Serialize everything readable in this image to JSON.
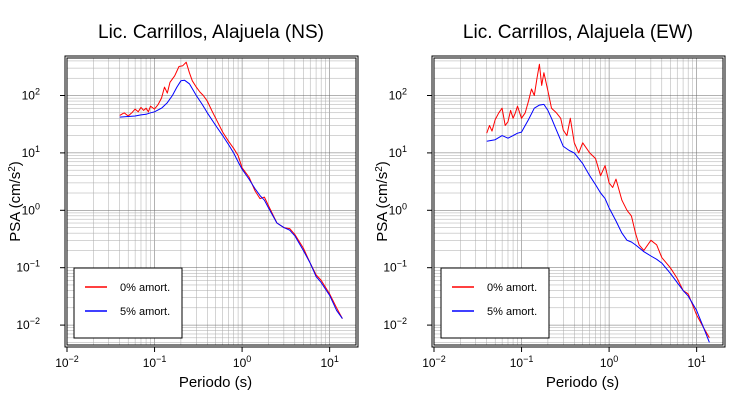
{
  "chart_data": [
    {
      "type": "line",
      "title": "Lic. Carrillos, Alajuela (NS)",
      "xlabel": "Periodo (s)",
      "ylabel_main": "PSA (cm/s",
      "ylabel_sup": "2",
      "ylabel_close": ")",
      "xscale": "log",
      "yscale": "log",
      "xlim": [
        0.01,
        20
      ],
      "ylim": [
        0.0045,
        450
      ],
      "grid": true,
      "legend_position": "bottom-left",
      "x_ticks": [
        {
          "base": "10",
          "exp": "−2",
          "value": 0.01
        },
        {
          "base": "10",
          "exp": "−1",
          "value": 0.1
        },
        {
          "base": "10",
          "exp": "0",
          "value": 1
        },
        {
          "base": "10",
          "exp": "1",
          "value": 10
        }
      ],
      "y_ticks": [
        {
          "base": "10",
          "exp": "−2",
          "value": 0.01
        },
        {
          "base": "10",
          "exp": "−1",
          "value": 0.1
        },
        {
          "base": "10",
          "exp": "0",
          "value": 1
        },
        {
          "base": "10",
          "exp": "1",
          "value": 10
        },
        {
          "base": "10",
          "exp": "2",
          "value": 100
        }
      ],
      "series": [
        {
          "name": "0% amort.",
          "color": "#ff0000",
          "x": [
            0.04,
            0.045,
            0.05,
            0.055,
            0.06,
            0.065,
            0.07,
            0.075,
            0.08,
            0.085,
            0.09,
            0.1,
            0.11,
            0.12,
            0.13,
            0.14,
            0.15,
            0.17,
            0.19,
            0.21,
            0.23,
            0.25,
            0.27,
            0.3,
            0.33,
            0.36,
            0.4,
            0.45,
            0.5,
            0.6,
            0.7,
            0.8,
            0.9,
            1.0,
            1.2,
            1.4,
            1.6,
            1.8,
            2.0,
            2.5,
            3.0,
            3.5,
            4.0,
            5.0,
            6.0,
            7.0,
            8.0,
            10.0,
            12.0,
            14.0
          ],
          "y": [
            45,
            50,
            44,
            50,
            58,
            52,
            62,
            55,
            60,
            52,
            65,
            58,
            70,
            90,
            140,
            110,
            170,
            220,
            320,
            330,
            380,
            250,
            180,
            140,
            115,
            100,
            80,
            55,
            40,
            23,
            16,
            12,
            9,
            5.5,
            3.8,
            2.2,
            1.6,
            1.7,
            1.2,
            0.6,
            0.5,
            0.48,
            0.38,
            0.22,
            0.12,
            0.075,
            0.06,
            0.035,
            0.02,
            0.013
          ]
        },
        {
          "name": "5% amort.",
          "color": "#0000ff",
          "x": [
            0.04,
            0.05,
            0.06,
            0.07,
            0.08,
            0.09,
            0.1,
            0.12,
            0.14,
            0.16,
            0.18,
            0.2,
            0.22,
            0.25,
            0.3,
            0.35,
            0.4,
            0.5,
            0.6,
            0.7,
            0.8,
            0.9,
            1.0,
            1.2,
            1.4,
            1.6,
            1.8,
            2.0,
            2.5,
            3.0,
            3.5,
            4.0,
            5.0,
            6.0,
            7.0,
            8.0,
            10.0,
            12.0,
            14.0
          ],
          "y": [
            42,
            43,
            44,
            46,
            47,
            50,
            52,
            60,
            75,
            100,
            140,
            180,
            185,
            160,
            100,
            70,
            50,
            30,
            20,
            14,
            10,
            7,
            5.2,
            3.5,
            2.4,
            1.8,
            1.5,
            1.1,
            0.6,
            0.5,
            0.45,
            0.36,
            0.2,
            0.12,
            0.07,
            0.055,
            0.033,
            0.018,
            0.013
          ]
        }
      ]
    },
    {
      "type": "line",
      "title": "Lic. Carrillos, Alajuela (EW)",
      "xlabel": "Periodo (s)",
      "ylabel_main": "PSA (cm/s",
      "ylabel_sup": "2",
      "ylabel_close": ")",
      "xscale": "log",
      "yscale": "log",
      "xlim": [
        0.01,
        20
      ],
      "ylim": [
        0.0045,
        450
      ],
      "grid": true,
      "legend_position": "bottom-left",
      "x_ticks": [
        {
          "base": "10",
          "exp": "−2",
          "value": 0.01
        },
        {
          "base": "10",
          "exp": "−1",
          "value": 0.1
        },
        {
          "base": "10",
          "exp": "0",
          "value": 1
        },
        {
          "base": "10",
          "exp": "1",
          "value": 10
        }
      ],
      "y_ticks": [
        {
          "base": "10",
          "exp": "−2",
          "value": 0.01
        },
        {
          "base": "10",
          "exp": "−1",
          "value": 0.1
        },
        {
          "base": "10",
          "exp": "0",
          "value": 1
        },
        {
          "base": "10",
          "exp": "1",
          "value": 10
        },
        {
          "base": "10",
          "exp": "2",
          "value": 100
        }
      ],
      "series": [
        {
          "name": "0% amort.",
          "color": "#ff0000",
          "x": [
            0.04,
            0.043,
            0.046,
            0.05,
            0.055,
            0.06,
            0.065,
            0.07,
            0.075,
            0.08,
            0.085,
            0.09,
            0.1,
            0.11,
            0.12,
            0.13,
            0.14,
            0.15,
            0.16,
            0.17,
            0.18,
            0.2,
            0.22,
            0.25,
            0.28,
            0.3,
            0.33,
            0.36,
            0.4,
            0.45,
            0.5,
            0.6,
            0.7,
            0.8,
            0.9,
            1.0,
            1.1,
            1.2,
            1.4,
            1.6,
            1.8,
            2.0,
            2.2,
            2.5,
            3.0,
            3.5,
            4.0,
            5.0,
            6.0,
            7.0,
            8.0,
            10.0,
            12.0,
            14.0
          ],
          "y": [
            22,
            30,
            24,
            38,
            50,
            60,
            30,
            35,
            55,
            40,
            50,
            65,
            40,
            50,
            80,
            130,
            100,
            200,
            350,
            150,
            250,
            120,
            60,
            50,
            40,
            25,
            20,
            40,
            15,
            10,
            15,
            10,
            8,
            4,
            6,
            3,
            2.5,
            3.5,
            1.5,
            1.0,
            0.8,
            0.4,
            0.25,
            0.2,
            0.3,
            0.25,
            0.15,
            0.1,
            0.065,
            0.04,
            0.035,
            0.015,
            0.009,
            0.006
          ]
        },
        {
          "name": "5% amort.",
          "color": "#0000ff",
          "x": [
            0.04,
            0.05,
            0.06,
            0.07,
            0.08,
            0.09,
            0.1,
            0.12,
            0.14,
            0.16,
            0.18,
            0.2,
            0.22,
            0.25,
            0.3,
            0.35,
            0.4,
            0.5,
            0.6,
            0.7,
            0.8,
            0.9,
            1.0,
            1.2,
            1.4,
            1.6,
            1.8,
            2.0,
            2.5,
            3.0,
            3.5,
            4.0,
            5.0,
            6.0,
            7.0,
            8.0,
            10.0,
            12.0,
            14.0
          ],
          "y": [
            16,
            17,
            20,
            18,
            20,
            22,
            23,
            38,
            60,
            68,
            70,
            55,
            40,
            25,
            13,
            11,
            10,
            6.5,
            4,
            2.8,
            2,
            1.6,
            1.1,
            0.65,
            0.4,
            0.3,
            0.28,
            0.25,
            0.19,
            0.16,
            0.14,
            0.12,
            0.08,
            0.055,
            0.04,
            0.032,
            0.018,
            0.009,
            0.005
          ]
        }
      ]
    }
  ]
}
